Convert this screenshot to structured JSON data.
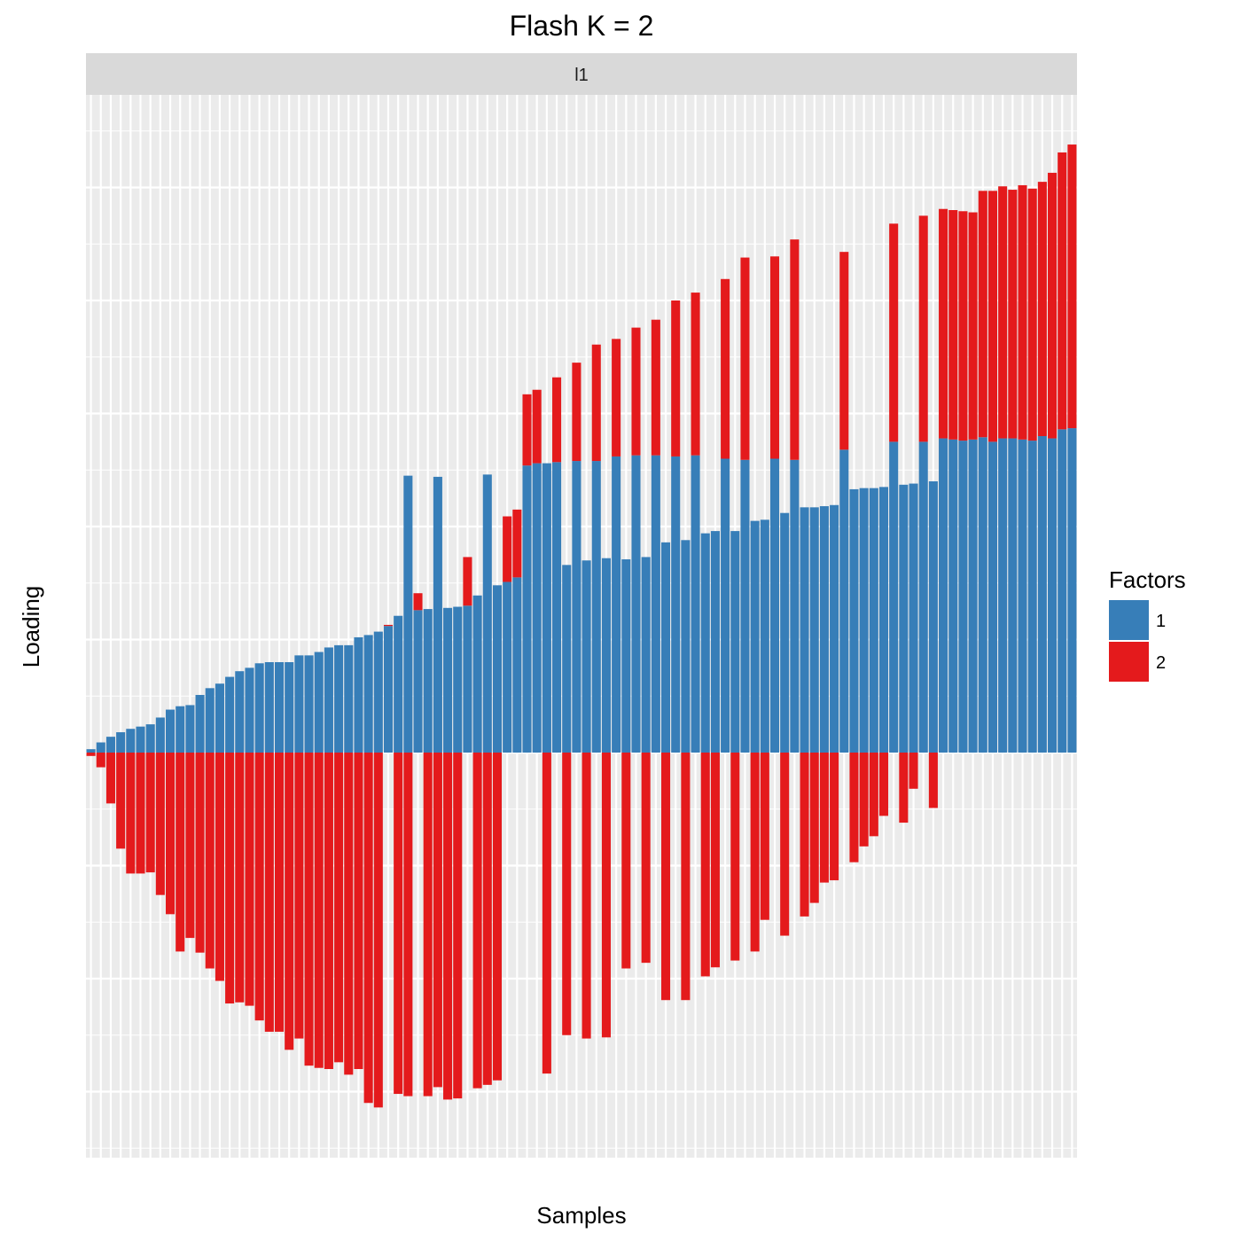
{
  "chart_data": {
    "type": "bar",
    "stacked": true,
    "title": "Flash K = 2",
    "facet_label": "l1",
    "xlabel": "Samples",
    "ylabel": "Loading",
    "ylim": [
      -3.6,
      5.5
    ],
    "y_ticks_shown": false,
    "x_ticks_shown": false,
    "grid": true,
    "legend_position": "right",
    "legend_title": "Factors",
    "series": [
      {
        "name": "1",
        "color": "#377EB8",
        "values": [
          0.03,
          0.09,
          0.14,
          0.18,
          0.21,
          0.23,
          0.25,
          0.31,
          0.38,
          0.41,
          0.42,
          0.51,
          0.57,
          0.61,
          0.67,
          0.72,
          0.75,
          0.79,
          0.8,
          0.8,
          0.8,
          0.86,
          0.86,
          0.89,
          0.93,
          0.95,
          0.95,
          1.02,
          1.04,
          1.07,
          1.12,
          1.21,
          2.45,
          1.26,
          1.27,
          2.44,
          1.28,
          1.29,
          1.3,
          1.39,
          2.46,
          1.48,
          1.51,
          1.55,
          2.54,
          2.56,
          2.56,
          2.57,
          1.66,
          2.58,
          1.7,
          2.58,
          1.72,
          2.62,
          1.71,
          2.63,
          1.73,
          2.63,
          1.86,
          2.62,
          1.88,
          2.63,
          1.94,
          1.96,
          2.6,
          1.96,
          2.59,
          2.05,
          2.06,
          2.6,
          2.12,
          2.59,
          2.17,
          2.17,
          2.18,
          2.19,
          2.68,
          2.33,
          2.34,
          2.34,
          2.35,
          2.75,
          2.37,
          2.38,
          2.75,
          2.4,
          2.78,
          2.77,
          2.76,
          2.77,
          2.79,
          2.75,
          2.78,
          2.78,
          2.77,
          2.76,
          2.8,
          2.78,
          2.86,
          2.87
        ]
      },
      {
        "name": "2",
        "color": "#E41A1C",
        "values": [
          -0.03,
          -0.13,
          -0.45,
          -0.85,
          -1.07,
          -1.07,
          -1.06,
          -1.26,
          -1.43,
          -1.76,
          -1.64,
          -1.77,
          -1.91,
          -2.02,
          -2.22,
          -2.21,
          -2.24,
          -2.37,
          -2.47,
          -2.47,
          -2.63,
          -2.53,
          -2.77,
          -2.79,
          -2.8,
          -2.74,
          -2.85,
          -2.8,
          -3.1,
          -3.14,
          0.01,
          -3.02,
          -3.04,
          0.15,
          -3.04,
          -2.96,
          -3.07,
          -3.06,
          0.43,
          -2.97,
          -2.94,
          -2.9,
          0.58,
          0.6,
          0.63,
          0.65,
          -2.84,
          0.75,
          -2.5,
          0.87,
          -2.53,
          1.03,
          -2.52,
          1.04,
          -1.91,
          1.13,
          -1.86,
          1.2,
          -2.19,
          1.38,
          -2.19,
          1.44,
          -1.98,
          -1.9,
          1.59,
          -1.84,
          1.79,
          -1.76,
          -1.48,
          1.79,
          -1.62,
          1.95,
          -1.45,
          -1.33,
          -1.15,
          -1.13,
          1.75,
          -0.97,
          -0.83,
          -0.74,
          -0.56,
          1.93,
          -0.62,
          -0.32,
          2.0,
          -0.49,
          2.03,
          2.03,
          2.03,
          2.01,
          2.18,
          2.22,
          2.23,
          2.2,
          2.25,
          2.23,
          2.25,
          2.35,
          2.45,
          2.51
        ]
      }
    ]
  }
}
